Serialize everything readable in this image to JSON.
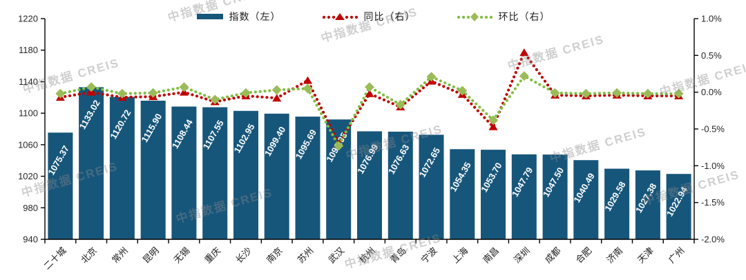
{
  "watermark": {
    "text": "中指数据 CREIS"
  },
  "legend": [
    {
      "label": "指数（左）",
      "type": "bar"
    },
    {
      "label": "同比（右）",
      "type": "triangle-line"
    },
    {
      "label": "环比（右）",
      "type": "diamond-line"
    }
  ],
  "colors": {
    "bar": "#17567B",
    "yoy_line": "#C00000",
    "yoy_marker": "#C00000",
    "mom_line": "#7FBE41",
    "mom_marker": "#9BBB59",
    "axis": "#000000",
    "tick_text": "#262626",
    "bar_label_text": "#FFFFFF"
  },
  "chart_data": {
    "type": "bar",
    "title": "",
    "xlabel": "",
    "ylabel": "",
    "grid": false,
    "legend_position": "top",
    "categories": [
      "二十城",
      "北京",
      "常州",
      "昆明",
      "无锡",
      "重庆",
      "长沙",
      "南京",
      "苏州",
      "武汉",
      "杭州",
      "青岛",
      "宁波",
      "上海",
      "南昌",
      "深圳",
      "成都",
      "合肥",
      "济南",
      "天津",
      "广州"
    ],
    "series": [
      {
        "name": "指数（左）",
        "type": "bar",
        "axis": "left",
        "values": [
          1075.37,
          1133.02,
          1120.72,
          1115.9,
          1108.44,
          1107.55,
          1102.95,
          1099.4,
          1095.69,
          1092.05,
          1076.99,
          1076.63,
          1072.65,
          1054.35,
          1053.7,
          1047.79,
          1047.5,
          1040.49,
          1029.58,
          1027.38,
          1022.94
        ]
      },
      {
        "name": "同比（右）",
        "type": "line",
        "axis": "right",
        "values": [
          -0.07,
          0.0,
          -0.07,
          -0.06,
          0.0,
          -0.13,
          -0.05,
          -0.08,
          0.16,
          -0.7,
          -0.02,
          -0.2,
          0.15,
          -0.03,
          -0.47,
          0.54,
          -0.04,
          -0.05,
          -0.04,
          -0.05,
          -0.05
        ]
      },
      {
        "name": "环比（右）",
        "type": "line",
        "axis": "right",
        "values": [
          -0.02,
          0.07,
          -0.02,
          -0.01,
          0.07,
          -0.1,
          -0.01,
          0.03,
          0.05,
          -0.73,
          0.07,
          -0.17,
          0.21,
          0.02,
          -0.38,
          0.22,
          -0.01,
          -0.02,
          -0.01,
          -0.02,
          -0.02
        ]
      }
    ],
    "left_axis": {
      "min": 940,
      "max": 1220,
      "ticks": [
        "1220",
        "1180",
        "1140",
        "1100",
        "1060",
        "1020",
        "980",
        "940"
      ]
    },
    "right_axis": {
      "min": -2.0,
      "max": 1.0,
      "ticks": [
        "1.0%",
        "0.5%",
        "0.0%",
        "-0.5%",
        "-1.0%",
        "-1.5%",
        "-2.0%"
      ]
    }
  }
}
